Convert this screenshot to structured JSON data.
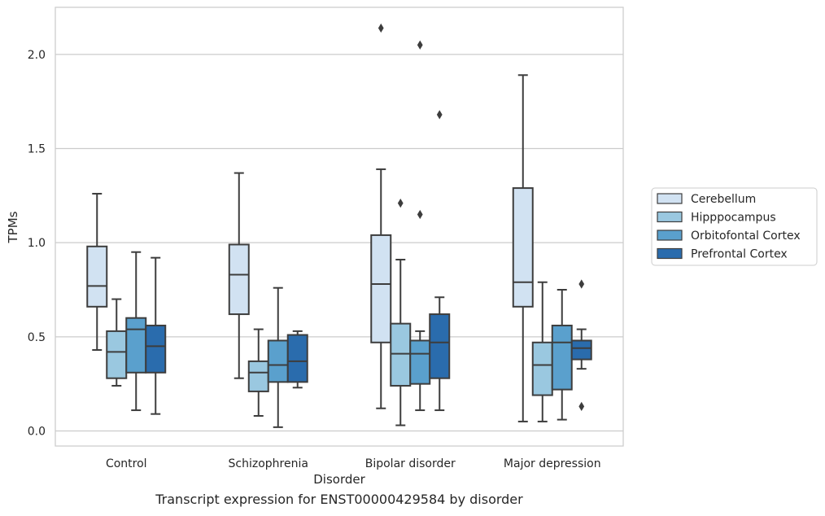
{
  "chart_data": {
    "type": "box",
    "title": "",
    "caption": "Transcript expression for ENST00000429584 by disorder",
    "xlabel": "Disorder",
    "ylabel": "TPMs",
    "categories": [
      "Control",
      "Schizophrenia",
      "Bipolar disorder",
      "Major depression"
    ],
    "ylim": [
      -0.08,
      2.25
    ],
    "yticks": [
      0.0,
      0.5,
      1.0,
      1.5,
      2.0
    ],
    "ytick_labels": [
      "0.0",
      "0.5",
      "1.0",
      "1.5",
      "2.0"
    ],
    "grid": "horizontal",
    "legend_position": "right",
    "series": [
      {
        "name": "Cerebellum",
        "color": "#d1e2f2",
        "boxes": [
          {
            "whisker_low": 0.43,
            "q1": 0.66,
            "median": 0.77,
            "q3": 0.98,
            "whisker_high": 1.26,
            "outliers": []
          },
          {
            "whisker_low": 0.28,
            "q1": 0.62,
            "median": 0.83,
            "q3": 0.99,
            "whisker_high": 1.37,
            "outliers": []
          },
          {
            "whisker_low": 0.12,
            "q1": 0.47,
            "median": 0.78,
            "q3": 1.04,
            "whisker_high": 1.39,
            "outliers": [
              2.14
            ]
          },
          {
            "whisker_low": 0.05,
            "q1": 0.66,
            "median": 0.79,
            "q3": 1.29,
            "whisker_high": 1.89,
            "outliers": []
          }
        ]
      },
      {
        "name": "Hipppocampus",
        "color": "#9ac8e0",
        "boxes": [
          {
            "whisker_low": 0.24,
            "q1": 0.28,
            "median": 0.42,
            "q3": 0.53,
            "whisker_high": 0.7,
            "outliers": []
          },
          {
            "whisker_low": 0.08,
            "q1": 0.21,
            "median": 0.31,
            "q3": 0.37,
            "whisker_high": 0.54,
            "outliers": []
          },
          {
            "whisker_low": 0.03,
            "q1": 0.24,
            "median": 0.41,
            "q3": 0.57,
            "whisker_high": 0.91,
            "outliers": [
              1.21
            ]
          },
          {
            "whisker_low": 0.05,
            "q1": 0.19,
            "median": 0.35,
            "q3": 0.47,
            "whisker_high": 0.79,
            "outliers": []
          }
        ]
      },
      {
        "name": "Orbitofontal Cortex",
        "color": "#5aa0cd",
        "boxes": [
          {
            "whisker_low": 0.11,
            "q1": 0.31,
            "median": 0.54,
            "q3": 0.6,
            "whisker_high": 0.95,
            "outliers": []
          },
          {
            "whisker_low": 0.02,
            "q1": 0.26,
            "median": 0.35,
            "q3": 0.48,
            "whisker_high": 0.76,
            "outliers": []
          },
          {
            "whisker_low": 0.11,
            "q1": 0.25,
            "median": 0.41,
            "q3": 0.48,
            "whisker_high": 0.53,
            "outliers": [
              2.05,
              1.15
            ]
          },
          {
            "whisker_low": 0.06,
            "q1": 0.22,
            "median": 0.47,
            "q3": 0.56,
            "whisker_high": 0.75,
            "outliers": []
          }
        ]
      },
      {
        "name": "Prefrontal Cortex",
        "color": "#2a6cad",
        "boxes": [
          {
            "whisker_low": 0.09,
            "q1": 0.31,
            "median": 0.45,
            "q3": 0.56,
            "whisker_high": 0.92,
            "outliers": []
          },
          {
            "whisker_low": 0.23,
            "q1": 0.26,
            "median": 0.37,
            "q3": 0.51,
            "whisker_high": 0.53,
            "outliers": []
          },
          {
            "whisker_low": 0.11,
            "q1": 0.28,
            "median": 0.47,
            "q3": 0.62,
            "whisker_high": 0.71,
            "outliers": [
              1.68
            ]
          },
          {
            "whisker_low": 0.33,
            "q1": 0.38,
            "median": 0.44,
            "q3": 0.48,
            "whisker_high": 0.54,
            "outliers": [
              0.78,
              0.13
            ]
          }
        ]
      }
    ]
  }
}
